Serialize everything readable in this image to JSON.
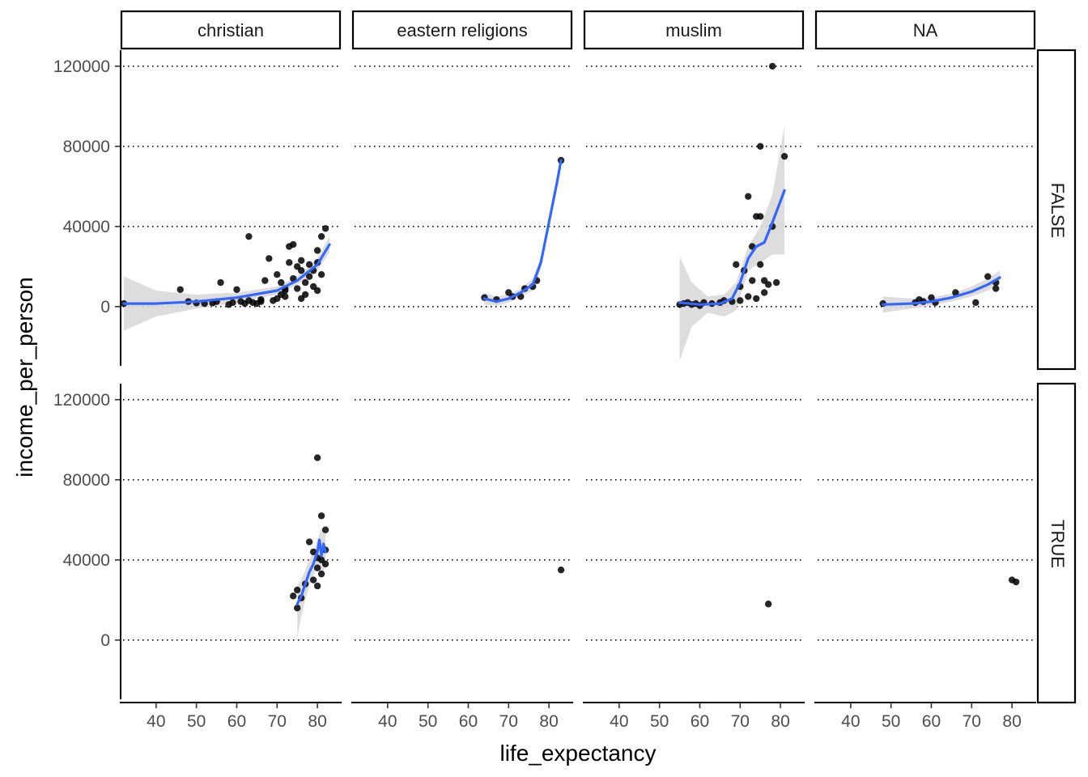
{
  "chart_data": {
    "type": "scatter",
    "facet_cols": [
      "christian",
      "eastern religions",
      "muslim",
      "NA"
    ],
    "facet_rows": [
      "FALSE",
      "TRUE"
    ],
    "xlabel": "life_expectancy",
    "ylabel": "income_per_person",
    "x_ticks": [
      40,
      50,
      60,
      70,
      80
    ],
    "y_ticks": [
      0,
      40000,
      80000,
      120000
    ],
    "xlim": [
      31,
      86
    ],
    "ylim": [
      -32000,
      128000
    ],
    "grid": "horizontal dotted",
    "colors": {
      "points": "#000000",
      "smooth": "#3366ff",
      "ribbon": "#d9d9d9"
    },
    "panels": [
      {
        "col": "christian",
        "row": "FALSE",
        "points": [
          [
            32,
            1500
          ],
          [
            46,
            8500
          ],
          [
            48,
            2500
          ],
          [
            50,
            1800
          ],
          [
            52,
            1500
          ],
          [
            54,
            1800
          ],
          [
            55,
            2500
          ],
          [
            56,
            12000
          ],
          [
            58,
            1000
          ],
          [
            59,
            2000
          ],
          [
            60,
            8500
          ],
          [
            61,
            2500
          ],
          [
            62,
            1500
          ],
          [
            63,
            35000
          ],
          [
            63,
            3000
          ],
          [
            64,
            2000
          ],
          [
            65,
            1500
          ],
          [
            66,
            2500
          ],
          [
            67,
            13000
          ],
          [
            68,
            24000
          ],
          [
            69,
            3000
          ],
          [
            70,
            4000
          ],
          [
            70,
            16000
          ],
          [
            71,
            12000
          ],
          [
            71,
            6000
          ],
          [
            72,
            9000
          ],
          [
            72,
            5000
          ],
          [
            73,
            22000
          ],
          [
            73,
            30000
          ],
          [
            74,
            31000
          ],
          [
            74,
            14000
          ],
          [
            75,
            20000
          ],
          [
            75,
            9000
          ],
          [
            76,
            18000
          ],
          [
            76,
            23000
          ],
          [
            77,
            12000
          ],
          [
            77,
            6000
          ],
          [
            78,
            15000
          ],
          [
            78,
            21000
          ],
          [
            79,
            10000
          ],
          [
            79,
            18000
          ],
          [
            80,
            28000
          ],
          [
            80,
            22000
          ],
          [
            81,
            35000
          ],
          [
            81,
            16000
          ],
          [
            82,
            39000
          ],
          [
            66,
            3500
          ],
          [
            72,
            8000
          ],
          [
            76,
            4000
          ],
          [
            80,
            8000
          ]
        ],
        "smooth": [
          [
            32,
            1500
          ],
          [
            40,
            1500
          ],
          [
            50,
            2500
          ],
          [
            60,
            4500
          ],
          [
            70,
            8000
          ],
          [
            75,
            13000
          ],
          [
            80,
            21000
          ],
          [
            83,
            31000
          ]
        ],
        "ribbon_upper": [
          [
            32,
            15000
          ],
          [
            40,
            8000
          ],
          [
            50,
            6000
          ],
          [
            60,
            7000
          ],
          [
            70,
            10000
          ],
          [
            75,
            15000
          ],
          [
            80,
            24000
          ],
          [
            83,
            35000
          ]
        ],
        "ribbon_lower": [
          [
            32,
            -12000
          ],
          [
            40,
            -5000
          ],
          [
            50,
            -1000
          ],
          [
            60,
            2000
          ],
          [
            70,
            6000
          ],
          [
            75,
            11000
          ],
          [
            80,
            18000
          ],
          [
            83,
            27000
          ]
        ]
      },
      {
        "col": "eastern religions",
        "row": "FALSE",
        "points": [
          [
            64,
            4500
          ],
          [
            67,
            3500
          ],
          [
            70,
            7000
          ],
          [
            71,
            5000
          ],
          [
            73,
            5000
          ],
          [
            74,
            9000
          ],
          [
            76,
            10000
          ],
          [
            77,
            13000
          ],
          [
            83,
            73000
          ]
        ],
        "smooth": [
          [
            64,
            4000
          ],
          [
            67,
            2500
          ],
          [
            70,
            4000
          ],
          [
            73,
            7000
          ],
          [
            76,
            11000
          ],
          [
            78,
            22000
          ],
          [
            80,
            42000
          ],
          [
            82,
            62000
          ],
          [
            83,
            73000
          ]
        ],
        "ribbon_upper": [
          [
            64,
            7000
          ],
          [
            67,
            5000
          ],
          [
            70,
            6000
          ],
          [
            73,
            9000
          ],
          [
            76,
            14000
          ],
          [
            78,
            25000
          ],
          [
            80,
            44000
          ],
          [
            82,
            63000
          ],
          [
            83,
            74000
          ]
        ],
        "ribbon_lower": [
          [
            64,
            1000
          ],
          [
            67,
            500
          ],
          [
            70,
            2000
          ],
          [
            73,
            5000
          ],
          [
            76,
            8000
          ],
          [
            78,
            19000
          ],
          [
            80,
            40000
          ],
          [
            82,
            61000
          ],
          [
            83,
            72000
          ]
        ]
      },
      {
        "col": "muslim",
        "row": "FALSE",
        "points": [
          [
            55,
            1000
          ],
          [
            56,
            1500
          ],
          [
            57,
            2000
          ],
          [
            58,
            1000
          ],
          [
            59,
            1500
          ],
          [
            60,
            500
          ],
          [
            61,
            2000
          ],
          [
            63,
            1500
          ],
          [
            65,
            2000
          ],
          [
            68,
            2500
          ],
          [
            69,
            21000
          ],
          [
            70,
            10000
          ],
          [
            71,
            18000
          ],
          [
            72,
            5000
          ],
          [
            72,
            55000
          ],
          [
            73,
            30000
          ],
          [
            73,
            13000
          ],
          [
            74,
            4000
          ],
          [
            74,
            45000
          ],
          [
            75,
            21000
          ],
          [
            75,
            80000
          ],
          [
            75,
            45000
          ],
          [
            76,
            13000
          ],
          [
            76,
            7000
          ],
          [
            77,
            11000
          ],
          [
            78,
            40000
          ],
          [
            78,
            120000
          ],
          [
            79,
            12000
          ],
          [
            81,
            75000
          ],
          [
            66,
            3000
          ],
          [
            70,
            3000
          ]
        ],
        "smooth": [
          [
            55,
            2000
          ],
          [
            60,
            1000
          ],
          [
            65,
            1500
          ],
          [
            68,
            4000
          ],
          [
            70,
            12000
          ],
          [
            72,
            24000
          ],
          [
            74,
            30000
          ],
          [
            76,
            32000
          ],
          [
            78,
            42000
          ],
          [
            81,
            58000
          ]
        ],
        "ribbon_upper": [
          [
            55,
            25000
          ],
          [
            58,
            12000
          ],
          [
            62,
            5000
          ],
          [
            66,
            6000
          ],
          [
            69,
            12000
          ],
          [
            72,
            30000
          ],
          [
            75,
            40000
          ],
          [
            78,
            56000
          ],
          [
            81,
            90000
          ]
        ],
        "ribbon_lower": [
          [
            55,
            -27000
          ],
          [
            58,
            -10000
          ],
          [
            62,
            -3000
          ],
          [
            66,
            -5000
          ],
          [
            69,
            -2000
          ],
          [
            72,
            18000
          ],
          [
            75,
            22000
          ],
          [
            78,
            26000
          ],
          [
            81,
            26000
          ]
        ]
      },
      {
        "col": "NA",
        "row": "FALSE",
        "points": [
          [
            48,
            1500
          ],
          [
            56,
            2000
          ],
          [
            57,
            3500
          ],
          [
            58,
            2500
          ],
          [
            60,
            4500
          ],
          [
            61,
            2000
          ],
          [
            66,
            7000
          ],
          [
            71,
            2000
          ],
          [
            74,
            15000
          ],
          [
            76,
            9000
          ],
          [
            76,
            12000
          ]
        ],
        "smooth": [
          [
            48,
            1000
          ],
          [
            55,
            1500
          ],
          [
            60,
            2500
          ],
          [
            65,
            4500
          ],
          [
            70,
            7500
          ],
          [
            74,
            11000
          ],
          [
            77,
            14500
          ]
        ],
        "ribbon_upper": [
          [
            48,
            5000
          ],
          [
            55,
            4000
          ],
          [
            60,
            4500
          ],
          [
            65,
            6500
          ],
          [
            70,
            10000
          ],
          [
            74,
            14000
          ],
          [
            77,
            18000
          ]
        ],
        "ribbon_lower": [
          [
            48,
            -3000
          ],
          [
            55,
            -1000
          ],
          [
            60,
            500
          ],
          [
            65,
            2500
          ],
          [
            70,
            5000
          ],
          [
            74,
            8000
          ],
          [
            77,
            11000
          ]
        ]
      },
      {
        "col": "christian",
        "row": "TRUE",
        "points": [
          [
            74,
            22000
          ],
          [
            75,
            16000
          ],
          [
            75,
            25000
          ],
          [
            76,
            21000
          ],
          [
            77,
            28000
          ],
          [
            78,
            49000
          ],
          [
            79,
            44000
          ],
          [
            79,
            30000
          ],
          [
            80,
            27000
          ],
          [
            80,
            36000
          ],
          [
            80,
            91000
          ],
          [
            81,
            62000
          ],
          [
            81,
            33000
          ],
          [
            81,
            40000
          ],
          [
            82,
            45000
          ],
          [
            82,
            38000
          ],
          [
            82,
            55000
          ],
          [
            80,
            41000
          ]
        ],
        "smooth": [
          [
            75,
            18000
          ],
          [
            76,
            22000
          ],
          [
            77,
            28000
          ],
          [
            78,
            34000
          ],
          [
            79,
            38000
          ],
          [
            80,
            44000
          ],
          [
            80.5,
            50000
          ],
          [
            81,
            42000
          ],
          [
            81.5,
            48000
          ],
          [
            82,
            44000
          ]
        ],
        "ribbon_upper": [
          [
            75,
            27000
          ],
          [
            76,
            30000
          ],
          [
            77,
            35000
          ],
          [
            78,
            40000
          ],
          [
            79,
            44000
          ],
          [
            80,
            50000
          ],
          [
            81,
            56000
          ],
          [
            82,
            54000
          ]
        ],
        "ribbon_lower": [
          [
            75,
            1000
          ],
          [
            76,
            12000
          ],
          [
            77,
            20000
          ],
          [
            78,
            27000
          ],
          [
            79,
            32000
          ],
          [
            80,
            37000
          ],
          [
            81,
            34000
          ],
          [
            82,
            36000
          ]
        ]
      },
      {
        "col": "eastern religions",
        "row": "TRUE",
        "points": [
          [
            83,
            35000
          ]
        ]
      },
      {
        "col": "muslim",
        "row": "TRUE",
        "points": [
          [
            77,
            18000
          ]
        ]
      },
      {
        "col": "NA",
        "row": "TRUE",
        "points": [
          [
            80,
            30000
          ],
          [
            81,
            29000
          ]
        ]
      }
    ]
  }
}
